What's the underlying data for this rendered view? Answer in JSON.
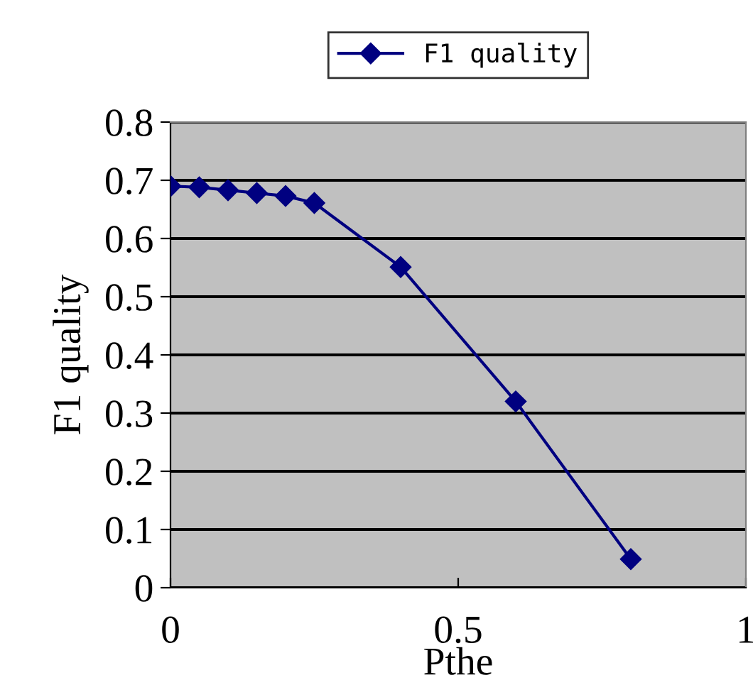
{
  "chart_data": {
    "type": "line",
    "xlabel": "Pthe",
    "ylabel": "F1 quality",
    "x": [
      0,
      0.05,
      0.1,
      0.15,
      0.2,
      0.25,
      0.4,
      0.6,
      0.8
    ],
    "series": [
      {
        "name": "F1 quality",
        "color": "#000080",
        "values": [
          0.69,
          0.688,
          0.683,
          0.678,
          0.673,
          0.661,
          0.551,
          0.32,
          0.049
        ]
      }
    ],
    "xlim": [
      0,
      1
    ],
    "xticks": [
      0,
      0.5,
      1
    ],
    "ylim": [
      0,
      0.8
    ],
    "yticks": [
      0,
      0.1,
      0.2,
      0.3,
      0.4,
      0.5,
      0.6,
      0.7,
      0.8
    ],
    "grid": "y",
    "legend": "top",
    "marker": "diamond",
    "line_style": "solid"
  }
}
